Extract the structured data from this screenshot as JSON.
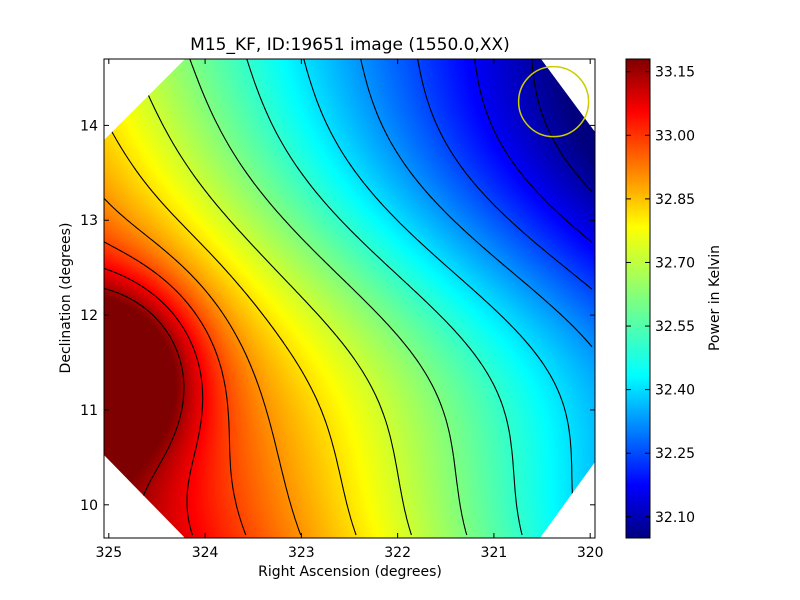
{
  "chart_data": {
    "type": "heatmap",
    "title": "M15_KF, ID:19651 image (1550.0,XX)",
    "xlabel": "Right Ascension (degrees)",
    "ylabel": "Declination (degrees)",
    "xlim": [
      325.05,
      319.95
    ],
    "ylim": [
      9.65,
      14.7
    ],
    "xticks": [
      "325",
      "324",
      "323",
      "322",
      "321",
      "320"
    ],
    "xtick_values": [
      325,
      324,
      323,
      322,
      321,
      320
    ],
    "yticks": [
      "10",
      "11",
      "12",
      "13",
      "14"
    ],
    "ytick_values": [
      10,
      11,
      12,
      13,
      14
    ],
    "colorbar": {
      "label": "Power in Kelvin",
      "range": [
        32.05,
        33.18
      ],
      "ticks": [
        "33.15",
        "33.00",
        "32.85",
        "32.70",
        "32.55",
        "32.40",
        "32.25",
        "32.10"
      ],
      "tick_values": [
        33.15,
        33.0,
        32.85,
        32.7,
        32.55,
        32.4,
        32.25,
        32.1
      ],
      "colormap": "jet"
    },
    "field": {
      "shape": "octagon",
      "maximum": {
        "ra": 324.85,
        "dec": 11.4,
        "value": 33.16
      },
      "minimum": {
        "ra": 320.3,
        "dec": 14.1,
        "value": 32.06
      },
      "gradient": "decreasing from lower-left toward upper-right"
    },
    "contours": {
      "count": 13,
      "color": "#000000"
    },
    "beam_circle": {
      "ra": 320.38,
      "dec": 14.25,
      "color": "#cccc00"
    }
  }
}
